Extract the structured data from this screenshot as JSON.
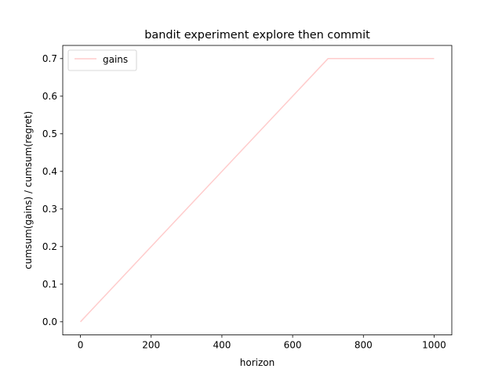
{
  "chart_data": {
    "type": "line",
    "title": "bandit experiment explore then commit",
    "xlabel": "horizon",
    "ylabel": "cumsum(gains) / cumsum(regret)",
    "xlim": [
      -50,
      1050
    ],
    "ylim": [
      -0.035,
      0.735
    ],
    "xticks": [
      0,
      200,
      400,
      600,
      800,
      1000
    ],
    "xtick_labels": [
      "0",
      "200",
      "400",
      "600",
      "800",
      "1000"
    ],
    "yticks": [
      0.0,
      0.1,
      0.2,
      0.3,
      0.4,
      0.5,
      0.6,
      0.7
    ],
    "ytick_labels": [
      "0.0",
      "0.1",
      "0.2",
      "0.3",
      "0.4",
      "0.5",
      "0.6",
      "0.7"
    ],
    "grid": false,
    "legend_position": "top-left",
    "series": [
      {
        "name": "gains",
        "color": "#ffcccc",
        "x": [
          0,
          700,
          1000
        ],
        "y": [
          0.0,
          0.7,
          0.7
        ]
      }
    ]
  }
}
